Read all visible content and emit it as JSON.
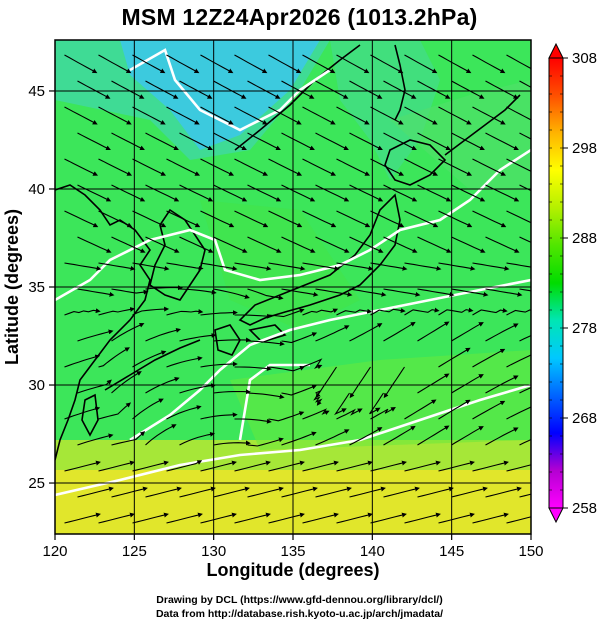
{
  "title": "MSM 12Z24Apr2026 (1013.2hPa)",
  "x_axis": {
    "label": "Longitude (degrees)",
    "ticks": [
      "120",
      "125",
      "130",
      "135",
      "140",
      "145",
      "150"
    ],
    "range": [
      120,
      150
    ]
  },
  "y_axis": {
    "label": "Latitude  (degrees)",
    "ticks": [
      "25",
      "30",
      "35",
      "40",
      "45"
    ],
    "range": [
      22.4,
      47.6
    ]
  },
  "colorbar": {
    "ticks": [
      "258",
      "268",
      "278",
      "288",
      "298",
      "308"
    ],
    "range": [
      258,
      308
    ],
    "colors": [
      "#ff00ff",
      "#b400d2",
      "#0000ff",
      "#0064ff",
      "#00c8ff",
      "#00e6b4",
      "#00dc00",
      "#50e600",
      "#b4f000",
      "#ffff00",
      "#ffb400",
      "#ff5000",
      "#ff0000"
    ]
  },
  "map_colors": {
    "land_outline": "#000000",
    "isotherm": "#ffffff",
    "streamline": "#000000",
    "grid": "#000000"
  },
  "credits": {
    "line1": "Drawing by DCL (https://www.gfd-dennou.org/library/dcl/)",
    "line2": "Data from http://database.rish.kyoto-u.ac.jp/arch/jmadata/"
  }
}
